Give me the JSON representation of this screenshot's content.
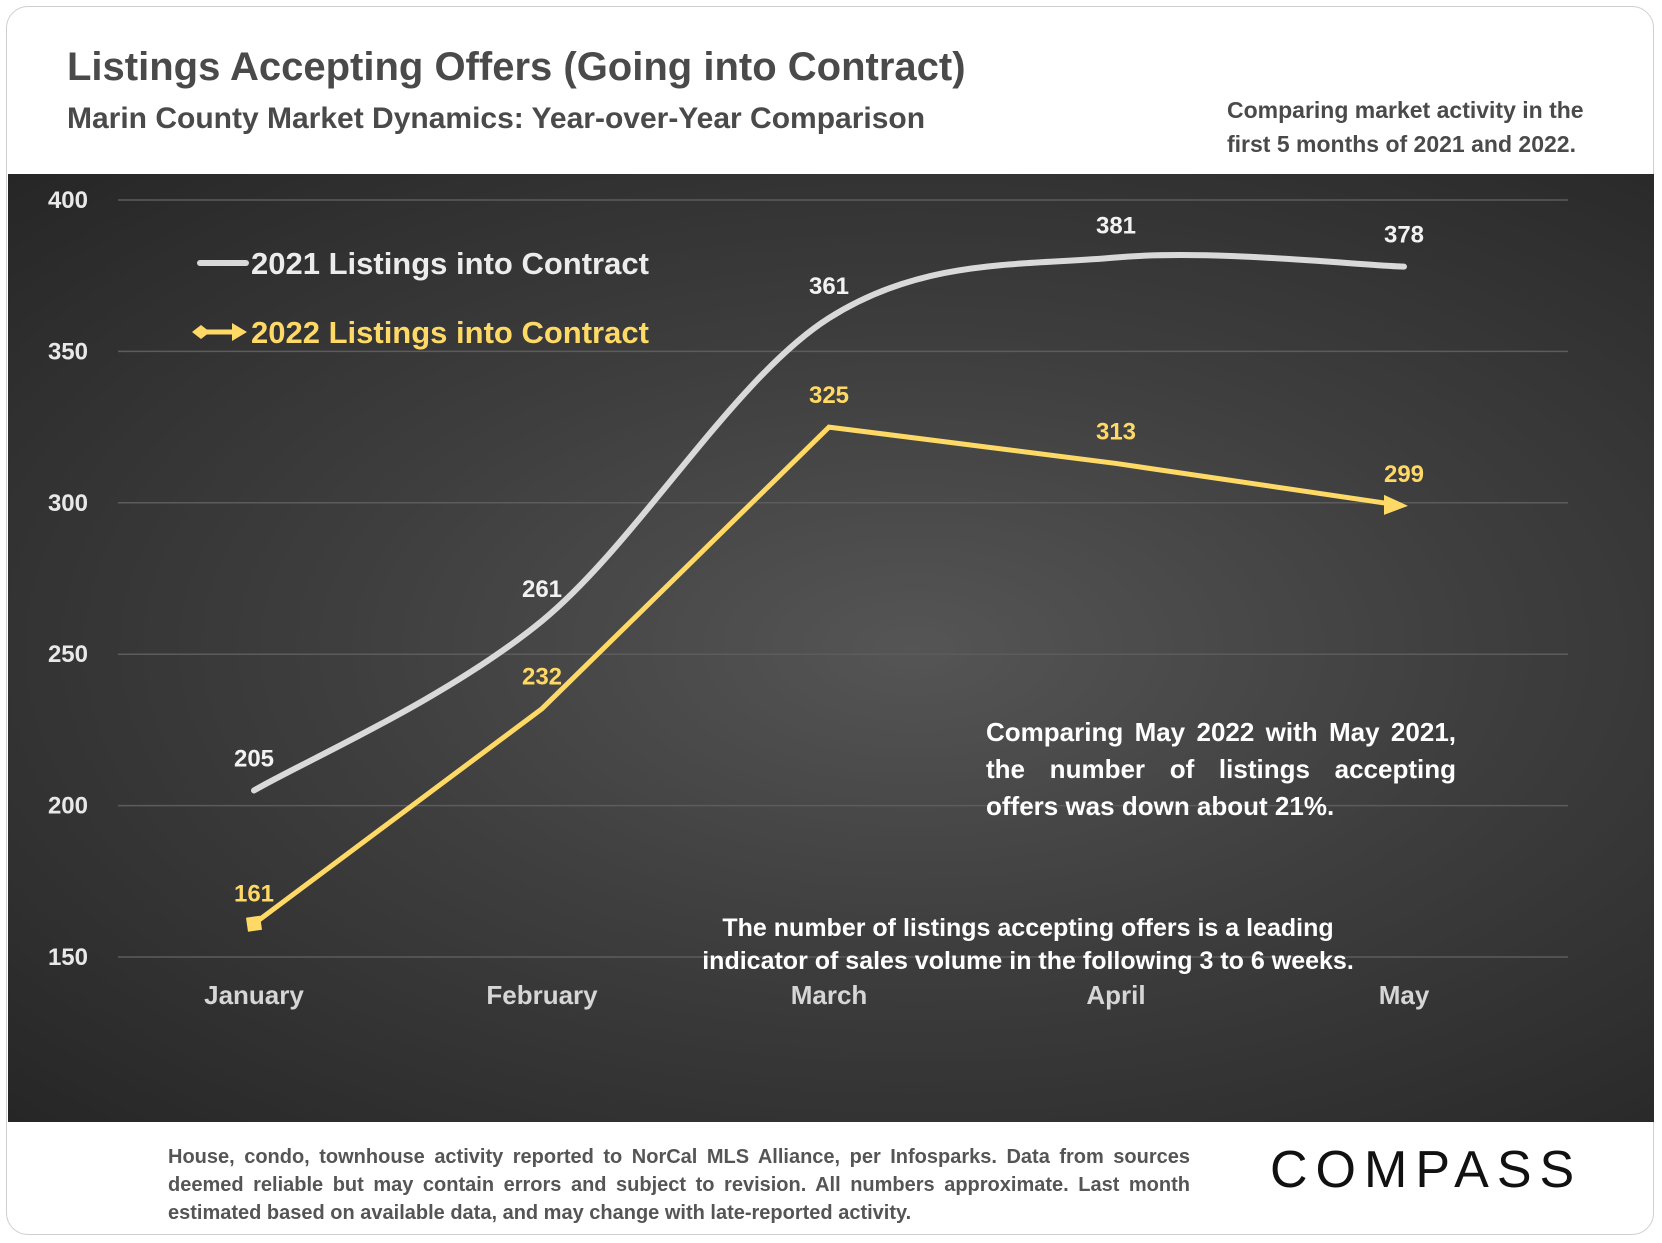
{
  "header": {
    "title": "Listings Accepting Offers (Going into Contract)",
    "subtitle": "Marin County Market Dynamics: Year-over-Year Comparison",
    "note": "Comparing market activity in the first 5 months of 2021 and 2022."
  },
  "chart_data": {
    "type": "line",
    "categories": [
      "January",
      "February",
      "March",
      "April",
      "May"
    ],
    "series": [
      {
        "name": "2021 Listings into Contract",
        "values": [
          205,
          261,
          361,
          381,
          378
        ],
        "color": "#d9d9d9",
        "smooth": true
      },
      {
        "name": "2022 Listings into Contract",
        "values": [
          161,
          232,
          325,
          313,
          299
        ],
        "color": "#ffd966",
        "smooth": false
      }
    ],
    "ylim": [
      150,
      400
    ],
    "yticks": [
      150,
      200,
      250,
      300,
      350,
      400
    ],
    "grid": true,
    "legend": "top-left",
    "background": "#3a3a3a"
  },
  "annotations": {
    "comparison": "Comparing May 2022 with May 2021, the number of listings accepting offers was down about 21%.",
    "leading_indicator": "The number of listings accepting offers is a leading indicator of sales volume in the following 3 to 6 weeks."
  },
  "footer": {
    "source": "House, condo, townhouse activity reported to NorCal MLS Alliance, per Infosparks. Data from sources deemed reliable but may contain errors and subject to revision. All numbers approximate. Last month estimated based on available data, and may change with late-reported activity.",
    "brand": "COMPASS"
  }
}
